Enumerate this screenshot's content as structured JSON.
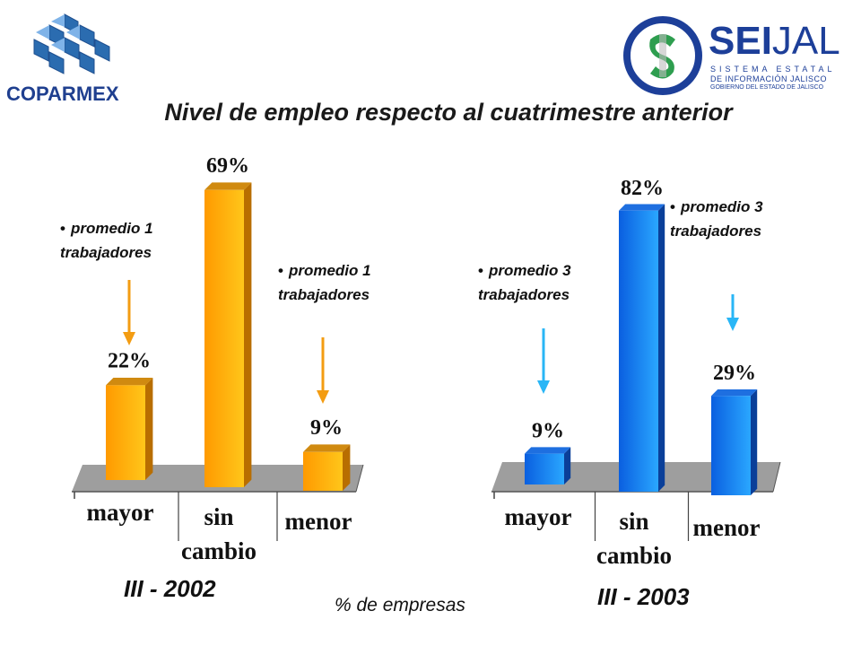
{
  "title": "Nivel de empleo respecto al cuatrimestre anterior",
  "units_label": "% de empresas",
  "logos": {
    "coparmex": {
      "name": "COPARMEX"
    },
    "seijal": {
      "name_bold": "SEI",
      "name_light": "JAL",
      "line1": "SISTEMA ESTATAL",
      "line2": "DE INFORMACIÓN JALISCO",
      "line3": "GOBIERNO DEL ESTADO DE JALISCO"
    }
  },
  "notes": {
    "left_mayor": {
      "line1": "promedio 1",
      "line2": "trabajadores"
    },
    "left_menor": {
      "line1": "promedio 1",
      "line2": "trabajadores"
    },
    "right_mayor": {
      "line1": "promedio 3",
      "line2": "trabajadores"
    },
    "right_menor": {
      "line1": "promedio 3",
      "line2": "trabajadores"
    }
  },
  "colors": {
    "orange_bar": "#ffa500",
    "blue_bar": "#1e90ff",
    "orange_arrow": "#f39c12",
    "blue_arrow": "#29b6f6",
    "floor": "#9e9e9e"
  },
  "chart_data": [
    {
      "type": "bar",
      "period_label": "III - 2002",
      "categories": [
        "mayor",
        "sin cambio",
        "menor"
      ],
      "values": [
        22,
        69,
        9
      ],
      "data_labels": [
        "22%",
        "69%",
        "9%"
      ],
      "color": "#ffa500"
    },
    {
      "type": "bar",
      "period_label": "III - 2003",
      "categories": [
        "mayor",
        "sin cambio",
        "menor"
      ],
      "values": [
        9,
        82,
        29
      ],
      "data_labels": [
        "9%",
        "82%",
        "29%"
      ],
      "color": "#1e90ff"
    }
  ]
}
